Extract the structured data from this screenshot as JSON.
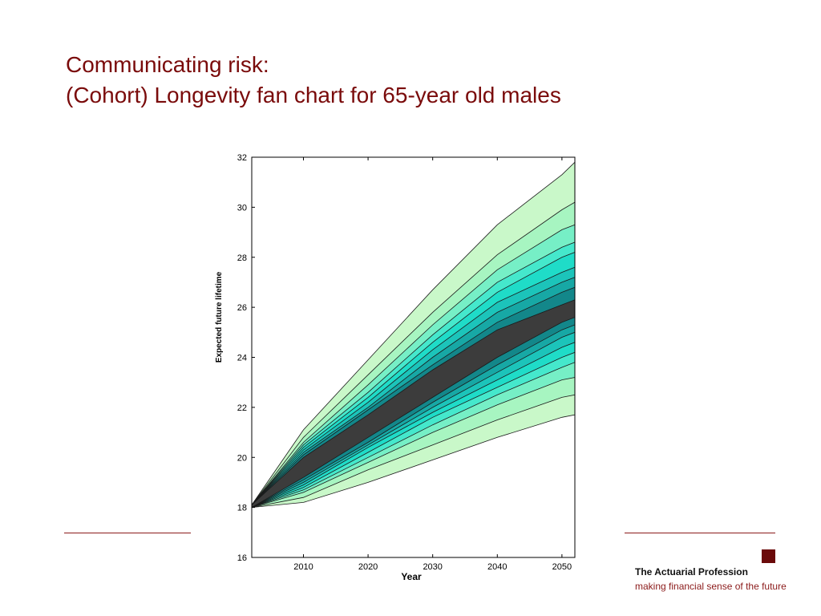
{
  "slide": {
    "title_line1": "Communicating risk:",
    "title_line2": "(Cohort) Longevity fan chart for 65-year old males"
  },
  "branding": {
    "name": "The Actuarial Profession",
    "tagline": "making financial sense of the future",
    "accent_color": "#7a0b0b"
  },
  "chart_data": {
    "type": "area",
    "xlabel": "Year",
    "ylabel": "Expected future lifetime",
    "xlim": [
      2002,
      2052
    ],
    "ylim": [
      16,
      32
    ],
    "xticks": [
      2010,
      2020,
      2030,
      2040,
      2050
    ],
    "yticks": [
      16,
      18,
      20,
      22,
      24,
      26,
      28,
      30,
      32
    ],
    "grid": false,
    "legend": "none",
    "x": [
      2002,
      2010,
      2020,
      2030,
      2040,
      2050,
      2052
    ],
    "bands": [
      {
        "lower": [
          18.0,
          18.2,
          19.0,
          19.9,
          20.8,
          21.6,
          21.7
        ],
        "upper": [
          18.1,
          21.1,
          23.9,
          26.7,
          29.3,
          31.3,
          31.8
        ],
        "color": "#c9f8c9"
      },
      {
        "lower": [
          18.0,
          18.4,
          19.5,
          20.5,
          21.5,
          22.4,
          22.5
        ],
        "upper": [
          18.1,
          20.8,
          23.3,
          25.8,
          28.1,
          29.9,
          30.2
        ],
        "color": "#a7f5c1"
      },
      {
        "lower": [
          18.0,
          18.6,
          19.8,
          21.0,
          22.1,
          23.1,
          23.2
        ],
        "upper": [
          18.1,
          20.6,
          22.9,
          25.3,
          27.5,
          29.1,
          29.3
        ],
        "color": "#76efc6"
      },
      {
        "lower": [
          18.0,
          18.7,
          20.0,
          21.3,
          22.5,
          23.6,
          23.8
        ],
        "upper": [
          18.1,
          20.5,
          22.6,
          24.9,
          27.0,
          28.4,
          28.6
        ],
        "color": "#45e8cc"
      },
      {
        "lower": [
          18.0,
          18.8,
          20.2,
          21.6,
          22.8,
          24.0,
          24.2
        ],
        "upper": [
          18.1,
          20.4,
          22.4,
          24.6,
          26.6,
          28.0,
          28.2
        ],
        "color": "#1fdcc8"
      },
      {
        "lower": [
          18.0,
          18.9,
          20.4,
          21.8,
          23.1,
          24.4,
          24.6
        ],
        "upper": [
          18.1,
          20.3,
          22.2,
          24.3,
          26.2,
          27.4,
          27.6
        ],
        "color": "#1cc4ba"
      },
      {
        "lower": [
          18.0,
          19.0,
          20.5,
          22.0,
          23.4,
          24.8,
          25.0
        ],
        "upper": [
          18.1,
          20.2,
          22.0,
          24.0,
          25.8,
          27.0,
          27.2
        ],
        "color": "#17a8a5"
      },
      {
        "lower": [
          18.0,
          19.1,
          20.6,
          22.2,
          23.7,
          25.1,
          25.3
        ],
        "upper": [
          18.1,
          20.1,
          21.9,
          23.7,
          25.4,
          26.6,
          26.8
        ],
        "color": "#13878a"
      },
      {
        "lower": [
          18.0,
          19.2,
          20.8,
          22.4,
          24.0,
          25.4,
          25.6
        ],
        "upper": [
          18.1,
          20.0,
          21.7,
          23.5,
          25.1,
          26.1,
          26.3
        ],
        "color": "#3c3c3c"
      }
    ]
  }
}
